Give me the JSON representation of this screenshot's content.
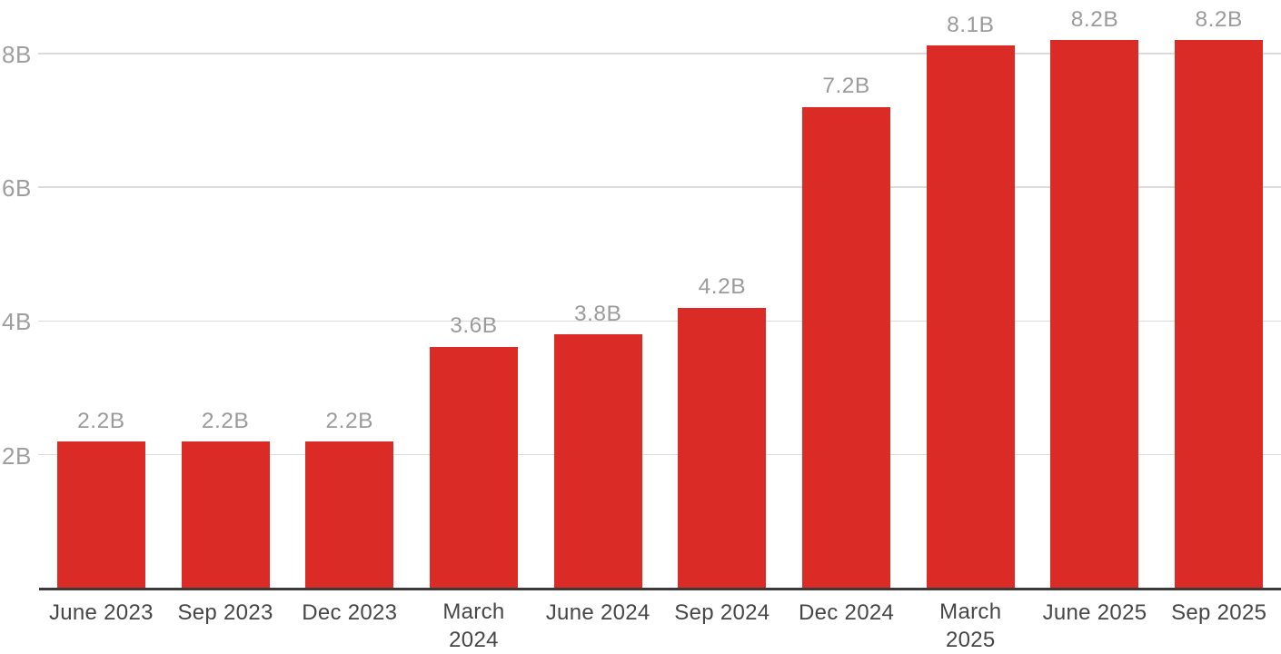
{
  "chart_data": {
    "type": "bar",
    "title": "",
    "xlabel": "",
    "ylabel": "",
    "categories": [
      "June 2023",
      "Sep 2023",
      "Dec 2023",
      "March\n2024",
      "June 2024",
      "Sep 2024",
      "Dec 2024",
      "March\n2025",
      "June 2025",
      "Sep 2025"
    ],
    "values": [
      2.2,
      2.2,
      2.2,
      3.6,
      3.8,
      4.2,
      7.2,
      8.1,
      8.2,
      8.2
    ],
    "value_labels": [
      "2.2B",
      "2.2B",
      "2.2B",
      "3.6B",
      "3.8B",
      "4.2B",
      "7.2B",
      "8.1B",
      "8.2B",
      "8.2B"
    ],
    "unit": "B",
    "y_ticks": [
      {
        "value": 2,
        "label": "2B"
      },
      {
        "value": 4,
        "label": "4B"
      },
      {
        "value": 6,
        "label": "6B"
      },
      {
        "value": 8,
        "label": "8B"
      }
    ],
    "ylim": [
      0,
      8.8
    ],
    "grid": true,
    "legend": false,
    "bar_color": "#DB2B27"
  },
  "colors": {
    "bar": "#DB2B27",
    "gridline": "#DBDBDB",
    "axis_line": "#3A3A3A",
    "y_tick_label": "#9E9E9E",
    "value_label": "#9B9B9B",
    "x_tick_label": "#464646",
    "background": "#FFFFFF"
  }
}
